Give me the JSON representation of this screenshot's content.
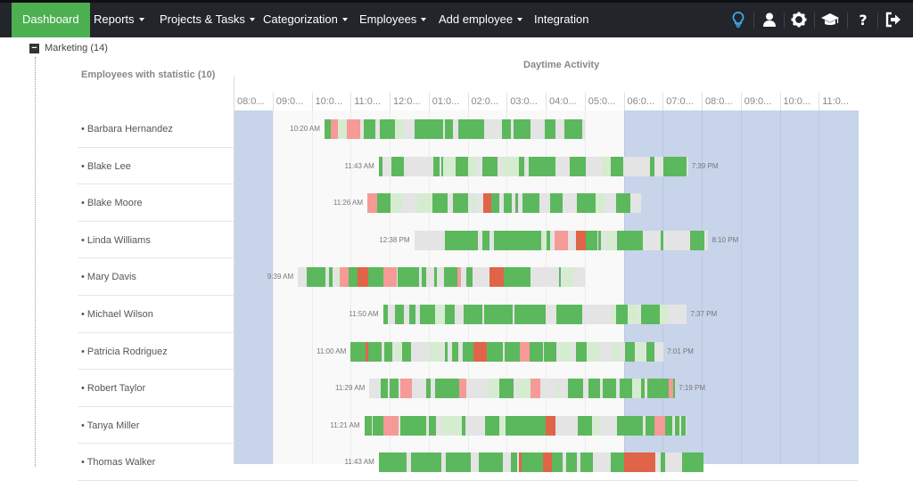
{
  "nav": {
    "items": [
      {
        "label": "Dashboard",
        "active": true,
        "caret": false
      },
      {
        "label": "Reports",
        "caret": true
      },
      {
        "label": "Projects & Tasks",
        "caret": true
      },
      {
        "label": "Categorization",
        "caret": true
      },
      {
        "label": "Employees",
        "caret": true
      },
      {
        "label": "Add employee",
        "caret": true
      },
      {
        "label": "Integration",
        "caret": false
      }
    ],
    "icons": [
      "lightbulb-icon",
      "user-icon",
      "gear-icon",
      "graduation-cap-icon",
      "help-icon",
      "logout-icon"
    ],
    "colors": {
      "bar": "#22252a",
      "active": "#4caf50",
      "lightbulb": "#3aaef0"
    }
  },
  "group": {
    "label": "Marketing (14)"
  },
  "table": {
    "employees_header": "Employees with statistic (10)",
    "activity_header": "Daytime Activity",
    "hours": [
      "08:0...",
      "09:0...",
      "10:0...",
      "11:0...",
      "12:0...",
      "01:0...",
      "02:0...",
      "03:0...",
      "04:0...",
      "05:0...",
      "06:0...",
      "07:0...",
      "08:0...",
      "09:0...",
      "10:0...",
      "11:0..."
    ],
    "colors": {
      "off_hours": "#c7d4ea",
      "work_hours": "#f9f9f9",
      "productive": "#5cb85c",
      "neutral": "#e4e4e4",
      "unproductive": "#e06448",
      "unproductive_light": "#f59a96",
      "productive_light": "#d6ecd0"
    }
  },
  "employees": [
    {
      "name": "• Barbara Hernandez",
      "start": "10:20 AM",
      "end": "",
      "start_h": 10.33,
      "end_h": 17.0
    },
    {
      "name": "• Blake Lee",
      "start": "11:43 AM",
      "end": "7:39 PM",
      "start_h": 11.72,
      "end_h": 19.65
    },
    {
      "name": "• Blake Moore",
      "start": "11:26 AM",
      "end": "",
      "start_h": 11.43,
      "end_h": 18.45
    },
    {
      "name": "• Linda Williams",
      "start": "12:38 PM",
      "end": "8:10 PM",
      "start_h": 12.63,
      "end_h": 20.17
    },
    {
      "name": "• Mary Davis",
      "start": "9:39 AM",
      "end": "",
      "start_h": 9.65,
      "end_h": 17.0
    },
    {
      "name": "• Michael Wilson",
      "start": "11:50 AM",
      "end": "7:37 PM",
      "start_h": 11.83,
      "end_h": 19.62
    },
    {
      "name": "• Patricia Rodriguez",
      "start": "11:00 AM",
      "end": "7:01 PM",
      "start_h": 11.0,
      "end_h": 19.02
    },
    {
      "name": "• Robert Taylor",
      "start": "11:29 AM",
      "end": "7:19 PM",
      "start_h": 11.48,
      "end_h": 19.32
    },
    {
      "name": "• Tanya Miller",
      "start": "11:21 AM",
      "end": "",
      "start_h": 11.35,
      "end_h": 19.6
    },
    {
      "name": "• Thomas Walker",
      "start": "11:43 AM",
      "end": "",
      "start_h": 11.72,
      "end_h": 20.05
    }
  ]
}
